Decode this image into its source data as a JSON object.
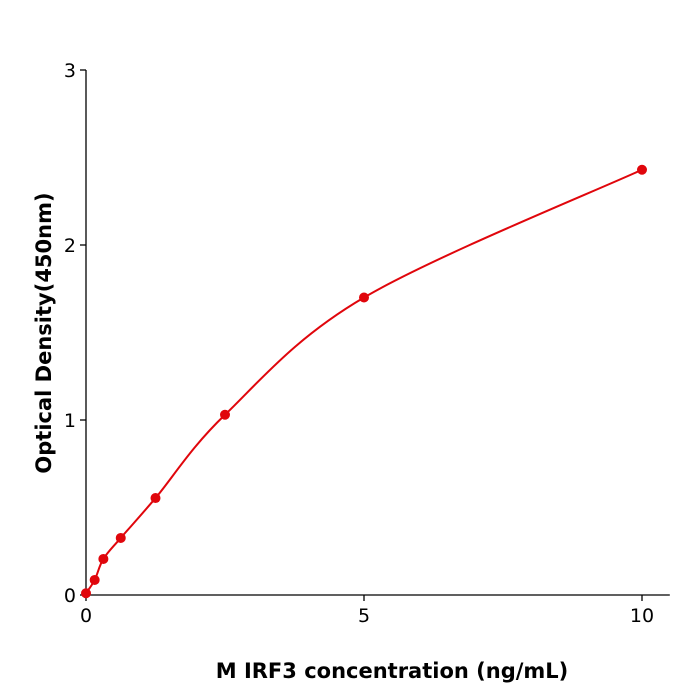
{
  "chart_data": {
    "type": "scatter",
    "x_label": "M  IRF3 concentration (ng/mL)",
    "y_label": "Optical Density(450nm)",
    "x": [
      0,
      0.156,
      0.3125,
      0.625,
      1.25,
      2.5,
      5,
      10
    ],
    "series": [
      {
        "color": "#e0060c",
        "values": [
          0.01,
          0.086,
          0.206,
          0.326,
          0.554,
          1.03,
          1.7,
          2.43
        ]
      }
    ],
    "xlim": [
      0,
      10.5
    ],
    "ylim": [
      0,
      3
    ],
    "xticks": [
      0,
      5,
      10
    ],
    "yticks": [
      0,
      1,
      2,
      3
    ],
    "grid": false
  }
}
